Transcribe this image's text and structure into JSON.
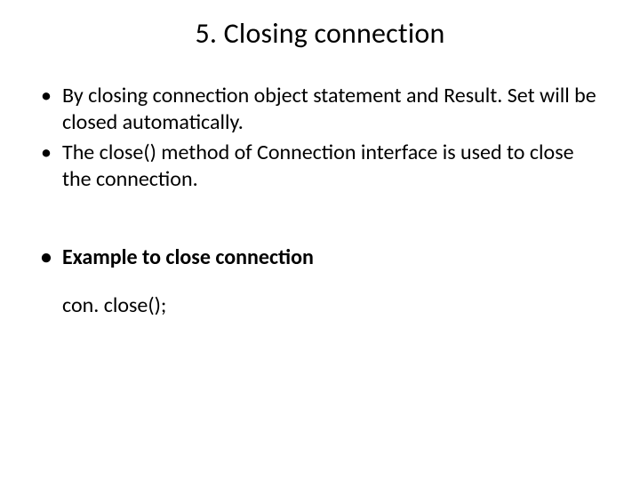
{
  "title": "5. Closing connection",
  "bullets": {
    "b1": "By closing connection object statement and Result. Set will be closed automatically.",
    "b2": "The close() method of Connection interface is used to close the connection.",
    "b3": "Example to close connection"
  },
  "code": "con. close();",
  "style": {
    "background_color": "#ffffff",
    "text_color": "#000000",
    "title_fontsize": 32,
    "body_fontsize": 24,
    "font_family": "Calibri"
  }
}
